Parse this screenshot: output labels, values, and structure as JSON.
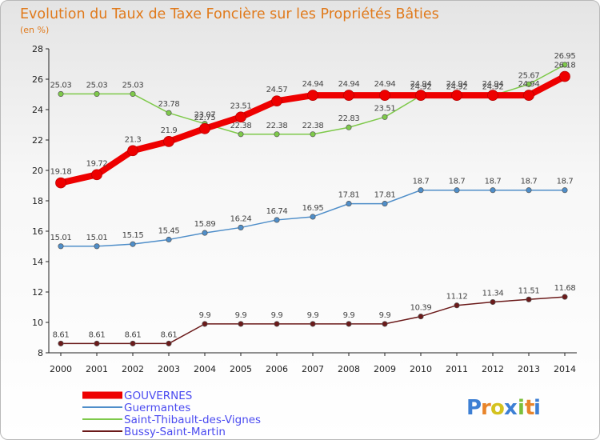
{
  "chart_data": {
    "type": "line",
    "title": "Evolution du Taux de Taxe Foncière sur les Propriétés Bâties",
    "subtitle": "(en %)",
    "xlabel": "",
    "ylabel": "",
    "ylim": [
      8,
      28
    ],
    "y_ticks": [
      8,
      10,
      12,
      14,
      16,
      18,
      20,
      22,
      24,
      26,
      28
    ],
    "x": [
      "2000",
      "2001",
      "2002",
      "2003",
      "2004",
      "2005",
      "2006",
      "2007",
      "2008",
      "2009",
      "2010",
      "2011",
      "2012",
      "2013",
      "2014"
    ],
    "series": [
      {
        "name": "Saint-Thibault-des-Vignes",
        "color": "#7ec94a",
        "labels": [
          "25.03",
          "25.03",
          "25.03",
          "23.78",
          "23.07",
          "22.38",
          "22.38",
          "22.38",
          "22.83",
          "23.51",
          "24.92",
          "24.92",
          "24.92",
          "25.67",
          "26.95"
        ],
        "values": [
          25.03,
          25.03,
          25.03,
          23.78,
          23.07,
          22.38,
          22.38,
          22.38,
          22.83,
          23.51,
          24.92,
          24.92,
          24.92,
          25.67,
          26.95
        ]
      },
      {
        "name": "Guermantes",
        "color": "#4f8ec9",
        "labels": [
          "15.01",
          "15.01",
          "15.15",
          "15.45",
          "15.89",
          "16.24",
          "16.74",
          "16.95",
          "17.81",
          "17.81",
          "18.7",
          "18.7",
          "18.7",
          "18.7",
          "18.7"
        ],
        "values": [
          15.01,
          15.01,
          15.15,
          15.45,
          15.89,
          16.24,
          16.74,
          16.95,
          17.81,
          17.81,
          18.7,
          18.7,
          18.7,
          18.7,
          18.7
        ]
      },
      {
        "name": "Bussy-Saint-Martin",
        "color": "#6b1a1a",
        "labels": [
          "8.61",
          "8.61",
          "8.61",
          "8.61",
          "9.9",
          "9.9",
          "9.9",
          "9.9",
          "9.9",
          "9.9",
          "10.39",
          "11.12",
          "11.34",
          "11.51",
          "11.68"
        ],
        "values": [
          8.61,
          8.61,
          8.61,
          8.61,
          9.9,
          9.9,
          9.9,
          9.9,
          9.9,
          9.9,
          10.39,
          11.12,
          11.34,
          11.51,
          11.68
        ]
      },
      {
        "name": "GOUVERNES",
        "color": "#ee0000",
        "labels": [
          "19.18",
          "19.72",
          "21.3",
          "21.9",
          "22.75",
          "23.51",
          "24.57",
          "24.94",
          "24.94",
          "24.94",
          "24.94",
          "24.94",
          "24.94",
          "24.94",
          "26.18"
        ],
        "values": [
          19.18,
          19.72,
          21.3,
          21.9,
          22.75,
          23.51,
          24.57,
          24.94,
          24.94,
          24.94,
          24.94,
          24.94,
          24.94,
          24.94,
          26.18
        ]
      }
    ],
    "legend_order": [
      "GOUVERNES",
      "Guermantes",
      "Saint-Thibault-des-Vignes",
      "Bussy-Saint-Martin"
    ],
    "legend_position": "bottom-left"
  },
  "logo": {
    "letters": [
      "P",
      "r",
      "o",
      "x",
      "i",
      "t",
      "i"
    ],
    "colors": [
      "#3d7fd4",
      "#e8842a",
      "#d4c21e",
      "#3d7fd4",
      "#7bbf3a",
      "#e8842a",
      "#3d7fd4"
    ]
  }
}
